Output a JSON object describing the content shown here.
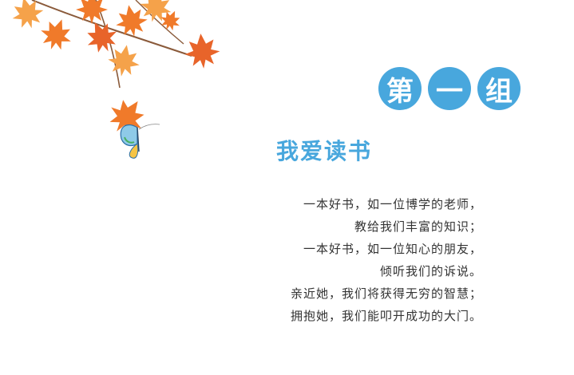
{
  "group": {
    "chars": [
      "第",
      "一",
      "组"
    ],
    "badge_color": "#48a7dd"
  },
  "unit": {
    "title": "我爱读书",
    "title_color": "#48a7dd"
  },
  "poem": {
    "lines": [
      "一本好书，如一位博学的老师，",
      "教给我们丰富的知识；",
      "一本好书，如一位知心的朋友，",
      "倾听我们的诉说。",
      "亲近她，我们将获得无穷的智慧；",
      "拥抱她，我们能叩开成功的大门。"
    ]
  },
  "decor": {
    "leaf_colors": [
      "#f07a2a",
      "#f5a24a",
      "#e8642a"
    ],
    "icons": [
      "maple-leaves-icon",
      "butterfly-icon"
    ]
  }
}
